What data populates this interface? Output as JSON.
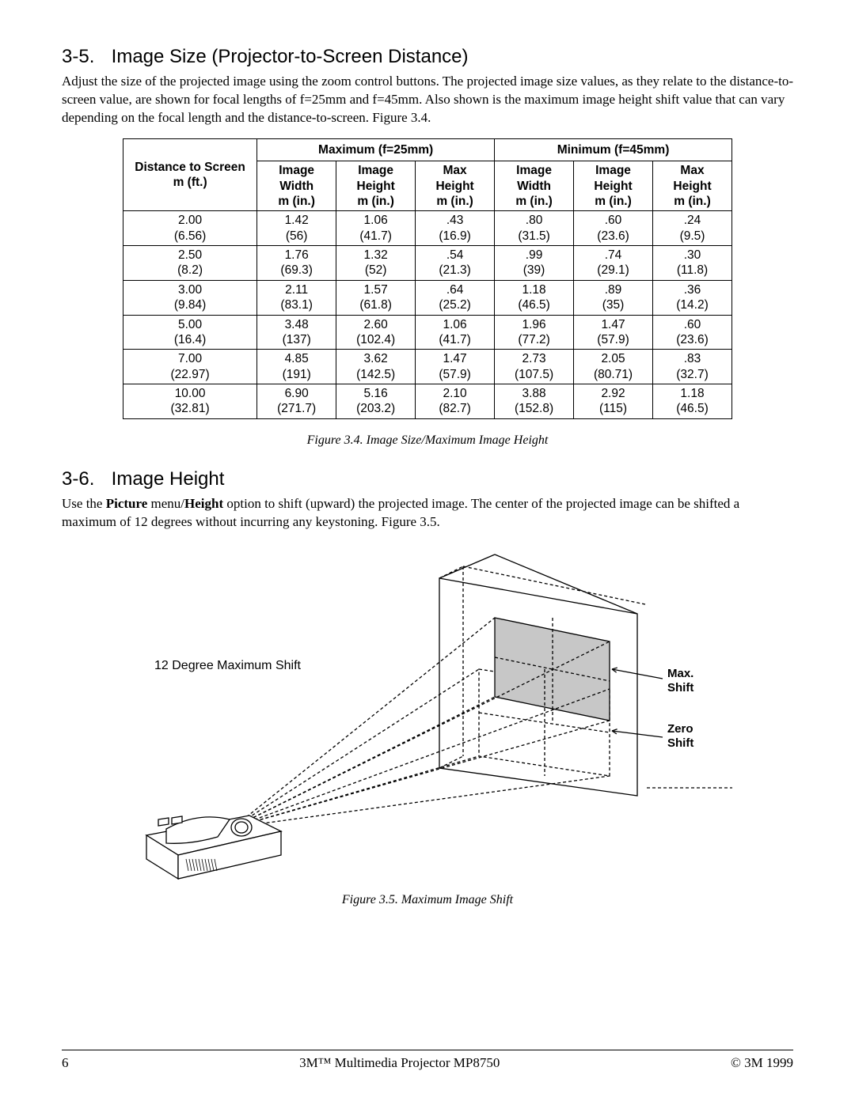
{
  "section35": {
    "number": "3-5.",
    "title": "Image Size (Projector-to-Screen Distance)",
    "paragraph": "Adjust the size of the projected image using the zoom control buttons. The projected image size values, as they relate to the distance-to-screen value, are shown for focal lengths of f=25mm and f=45mm. Also shown is the maximum image height shift value that can vary depending on the focal length and the distance-to-screen.  Figure 3.4."
  },
  "table34": {
    "group_headers": {
      "left_blank": "",
      "max": "Maximum (f=25mm)",
      "min": "Minimum (f=45mm)"
    },
    "col_headers": {
      "dist_l1": "Distance to Screen",
      "dist_l2": "m (ft.)",
      "iw_l1": "Image",
      "iw_l2": "Width",
      "iw_l3": "m (in.)",
      "ih_l1": "Image",
      "ih_l2": "Height",
      "ih_l3": "m (in.)",
      "mh_l1": "Max",
      "mh_l2": "Height",
      "mh_l3": "m (in.)"
    },
    "rows": [
      {
        "dist": [
          "2.00",
          "(6.56)"
        ],
        "max": [
          [
            "1.42",
            "(56)"
          ],
          [
            "1.06",
            "(41.7)"
          ],
          [
            ".43",
            "(16.9)"
          ]
        ],
        "min": [
          [
            ".80",
            "(31.5)"
          ],
          [
            ".60",
            "(23.6)"
          ],
          [
            ".24",
            "(9.5)"
          ]
        ]
      },
      {
        "dist": [
          "2.50",
          "(8.2)"
        ],
        "max": [
          [
            "1.76",
            "(69.3)"
          ],
          [
            "1.32",
            "(52)"
          ],
          [
            ".54",
            "(21.3)"
          ]
        ],
        "min": [
          [
            ".99",
            "(39)"
          ],
          [
            ".74",
            "(29.1)"
          ],
          [
            ".30",
            "(11.8)"
          ]
        ]
      },
      {
        "dist": [
          "3.00",
          "(9.84)"
        ],
        "max": [
          [
            "2.11",
            "(83.1)"
          ],
          [
            "1.57",
            "(61.8)"
          ],
          [
            ".64",
            "(25.2)"
          ]
        ],
        "min": [
          [
            "1.18",
            "(46.5)"
          ],
          [
            ".89",
            "(35)"
          ],
          [
            ".36",
            "(14.2)"
          ]
        ]
      },
      {
        "dist": [
          "5.00",
          "(16.4)"
        ],
        "max": [
          [
            "3.48",
            "(137)"
          ],
          [
            "2.60",
            "(102.4)"
          ],
          [
            "1.06",
            "(41.7)"
          ]
        ],
        "min": [
          [
            "1.96",
            "(77.2)"
          ],
          [
            "1.47",
            "(57.9)"
          ],
          [
            ".60",
            "(23.6)"
          ]
        ]
      },
      {
        "dist": [
          "7.00",
          "(22.97)"
        ],
        "max": [
          [
            "4.85",
            "(191)"
          ],
          [
            "3.62",
            "(142.5)"
          ],
          [
            "1.47",
            "(57.9)"
          ]
        ],
        "min": [
          [
            "2.73",
            "(107.5)"
          ],
          [
            "2.05",
            "(80.71)"
          ],
          [
            ".83",
            "(32.7)"
          ]
        ]
      },
      {
        "dist": [
          "10.00",
          "(32.81)"
        ],
        "max": [
          [
            "6.90",
            "(271.7)"
          ],
          [
            "5.16",
            "(203.2)"
          ],
          [
            "2.10",
            "(82.7)"
          ]
        ],
        "min": [
          [
            "3.88",
            "(152.8)"
          ],
          [
            "2.92",
            "(115)"
          ],
          [
            "1.18",
            "(46.5)"
          ]
        ]
      }
    ],
    "caption": "Figure 3.4. Image Size/Maximum Image Height"
  },
  "section36": {
    "number": "3-6.",
    "title": "Image Height",
    "paragraph_before_bold": "Use the ",
    "bold1": "Picture",
    "mid": " menu/",
    "bold2": "Height",
    "paragraph_after_bold": " option to shift (upward) the projected image. The center of the projected image can be shifted a maximum of 12 degrees without incurring any keystoning. Figure 3.5."
  },
  "figure35": {
    "left_label": "12 Degree Maximum Shift",
    "label_max_l1": "Max.",
    "label_max_l2": "Shift",
    "label_zero_l1": "Zero",
    "label_zero_l2": "Shift",
    "caption": "Figure 3.5.  Maximum Image Shift",
    "colors": {
      "stroke": "#000000",
      "screen_fill": "#c7c7c7",
      "projector_fill": "#ffffff",
      "background": "#ffffff"
    },
    "stroke_width": 1.3,
    "dash": "4 3"
  },
  "footer": {
    "page": "6",
    "center": "3M™ Multimedia Projector MP8750",
    "right": "© 3M 1999"
  }
}
